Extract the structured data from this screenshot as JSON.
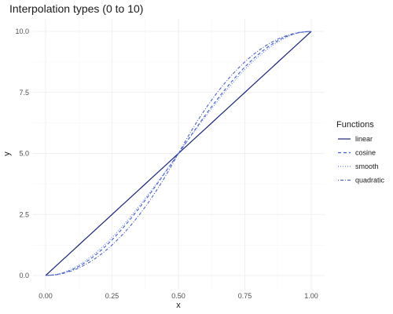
{
  "chart_data": {
    "type": "line",
    "title": "Interpolation types (0 to 10)",
    "xlabel": "x",
    "ylabel": "y",
    "xlim": [
      0,
      1
    ],
    "ylim": [
      0,
      10
    ],
    "x_ticks": [
      0,
      0.25,
      0.5,
      0.75,
      1
    ],
    "x_tick_labels": [
      "0.00",
      "0.25",
      "0.50",
      "0.75",
      "1.00"
    ],
    "y_ticks": [
      0,
      2.5,
      5,
      7.5,
      10
    ],
    "y_tick_labels": [
      "0.0",
      "2.5",
      "5.0",
      "7.5",
      "10.0"
    ],
    "grid": true,
    "legend": {
      "title": "Functions",
      "position": "right"
    },
    "x": [
      0,
      0.05,
      0.1,
      0.15,
      0.2,
      0.25,
      0.3,
      0.35,
      0.4,
      0.45,
      0.5,
      0.55,
      0.6,
      0.65,
      0.7,
      0.75,
      0.8,
      0.85,
      0.9,
      0.95,
      1
    ],
    "series": [
      {
        "name": "linear",
        "color": "#1a237e",
        "dash": "solid",
        "values": [
          0,
          0.5,
          1,
          1.5,
          2,
          2.5,
          3,
          3.5,
          4,
          4.5,
          5,
          5.5,
          6,
          6.5,
          7,
          7.5,
          8,
          8.5,
          9,
          9.5,
          10
        ]
      },
      {
        "name": "cosine",
        "color": "#3d5bd9",
        "dash": "dashed",
        "values": [
          0,
          0.06,
          0.24,
          0.54,
          0.95,
          1.46,
          2.06,
          2.73,
          3.45,
          4.22,
          5,
          5.78,
          6.55,
          7.27,
          7.94,
          8.54,
          9.05,
          9.46,
          9.76,
          9.94,
          10
        ]
      },
      {
        "name": "smooth",
        "color": "#5c7cfa",
        "dash": "dotted",
        "values": [
          0,
          0.07,
          0.28,
          0.61,
          1.04,
          1.56,
          2.16,
          2.82,
          3.52,
          4.25,
          5,
          5.75,
          6.48,
          7.18,
          7.84,
          8.44,
          8.96,
          9.39,
          9.72,
          9.93,
          10
        ]
      },
      {
        "name": "quadratic",
        "color": "#4c63c9",
        "dash": "dotdash",
        "values": [
          0,
          0.05,
          0.2,
          0.45,
          0.8,
          1.25,
          1.8,
          2.45,
          3.2,
          4.05,
          5,
          5.95,
          6.8,
          7.55,
          8.2,
          8.75,
          9.2,
          9.55,
          9.8,
          9.95,
          10
        ]
      }
    ]
  }
}
